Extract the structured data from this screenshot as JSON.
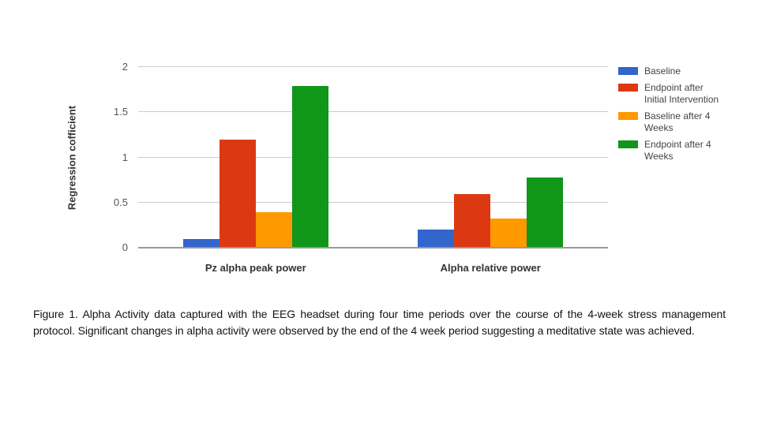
{
  "figure": {
    "caption": "Figure 1.  Alpha Activity data captured with the EEG headset during four time periods over the course of the 4-week stress management protocol. Significant changes in alpha activity were observed by the end of the 4 week period suggesting a meditative state was achieved."
  },
  "chart_data": {
    "type": "bar",
    "categories": [
      "Pz alpha peak power",
      "Alpha relative power"
    ],
    "series": [
      {
        "name": "Baseline",
        "color": "#3366CC",
        "values": [
          0.1,
          0.2
        ]
      },
      {
        "name": "Endpoint after Initial Intervention",
        "color": "#DC3912",
        "values": [
          1.2,
          0.59
        ]
      },
      {
        "name": "Baseline after 4 Weeks",
        "color": "#FF9900",
        "values": [
          0.39,
          0.32
        ]
      },
      {
        "name": "Endpoint after 4 Weeks",
        "color": "#109618",
        "values": [
          1.79,
          0.78
        ]
      }
    ],
    "title": "",
    "xlabel": "",
    "ylabel": "Regression cofficient",
    "ylim": [
      0,
      2
    ],
    "yticks": [
      0,
      0.5,
      1,
      1.5,
      2
    ],
    "ytick_labels": [
      "0",
      "0.5",
      "1",
      "1.5",
      "2"
    ],
    "grid": true,
    "legend_position": "right",
    "gridline_color": "#cccccc",
    "axis_line_color": "#999999"
  }
}
